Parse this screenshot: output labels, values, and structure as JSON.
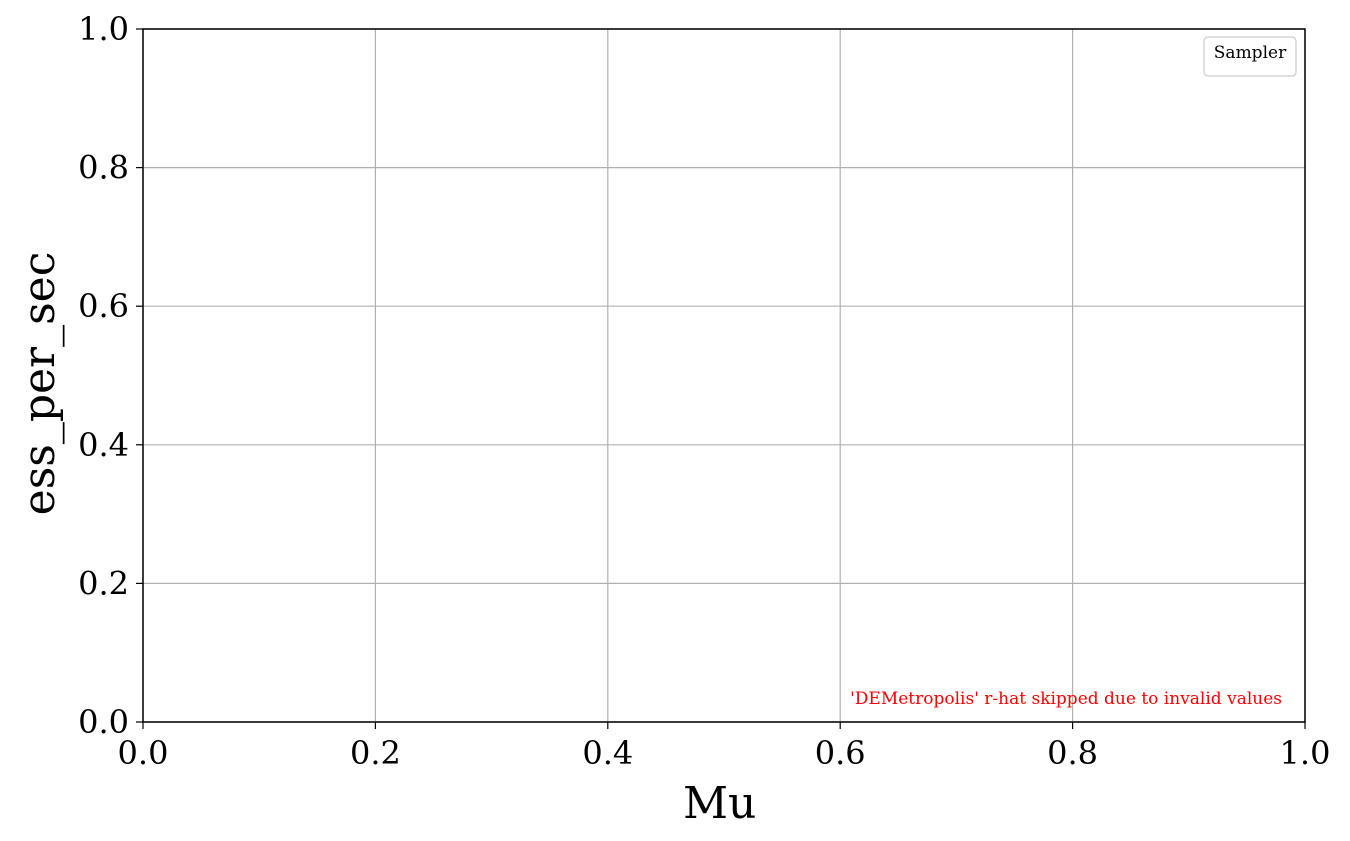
{
  "chart_data": {
    "type": "scatter",
    "title": "",
    "xlabel": "Mu",
    "ylabel": "ess_per_sec",
    "xlim": [
      0.0,
      1.0
    ],
    "ylim": [
      0.0,
      1.0
    ],
    "xticks": [
      "0.0",
      "0.2",
      "0.4",
      "0.6",
      "0.8",
      "1.0"
    ],
    "yticks": [
      "0.0",
      "0.2",
      "0.4",
      "0.6",
      "0.8",
      "1.0"
    ],
    "grid": true,
    "legend": {
      "title": "Sampler",
      "placement": "top-right",
      "entries": []
    },
    "series": [],
    "annotation": {
      "text": "'DEMetropolis' r-hat skipped due to invalid values",
      "color": "#ff0000",
      "placement": "bottom-right"
    }
  }
}
